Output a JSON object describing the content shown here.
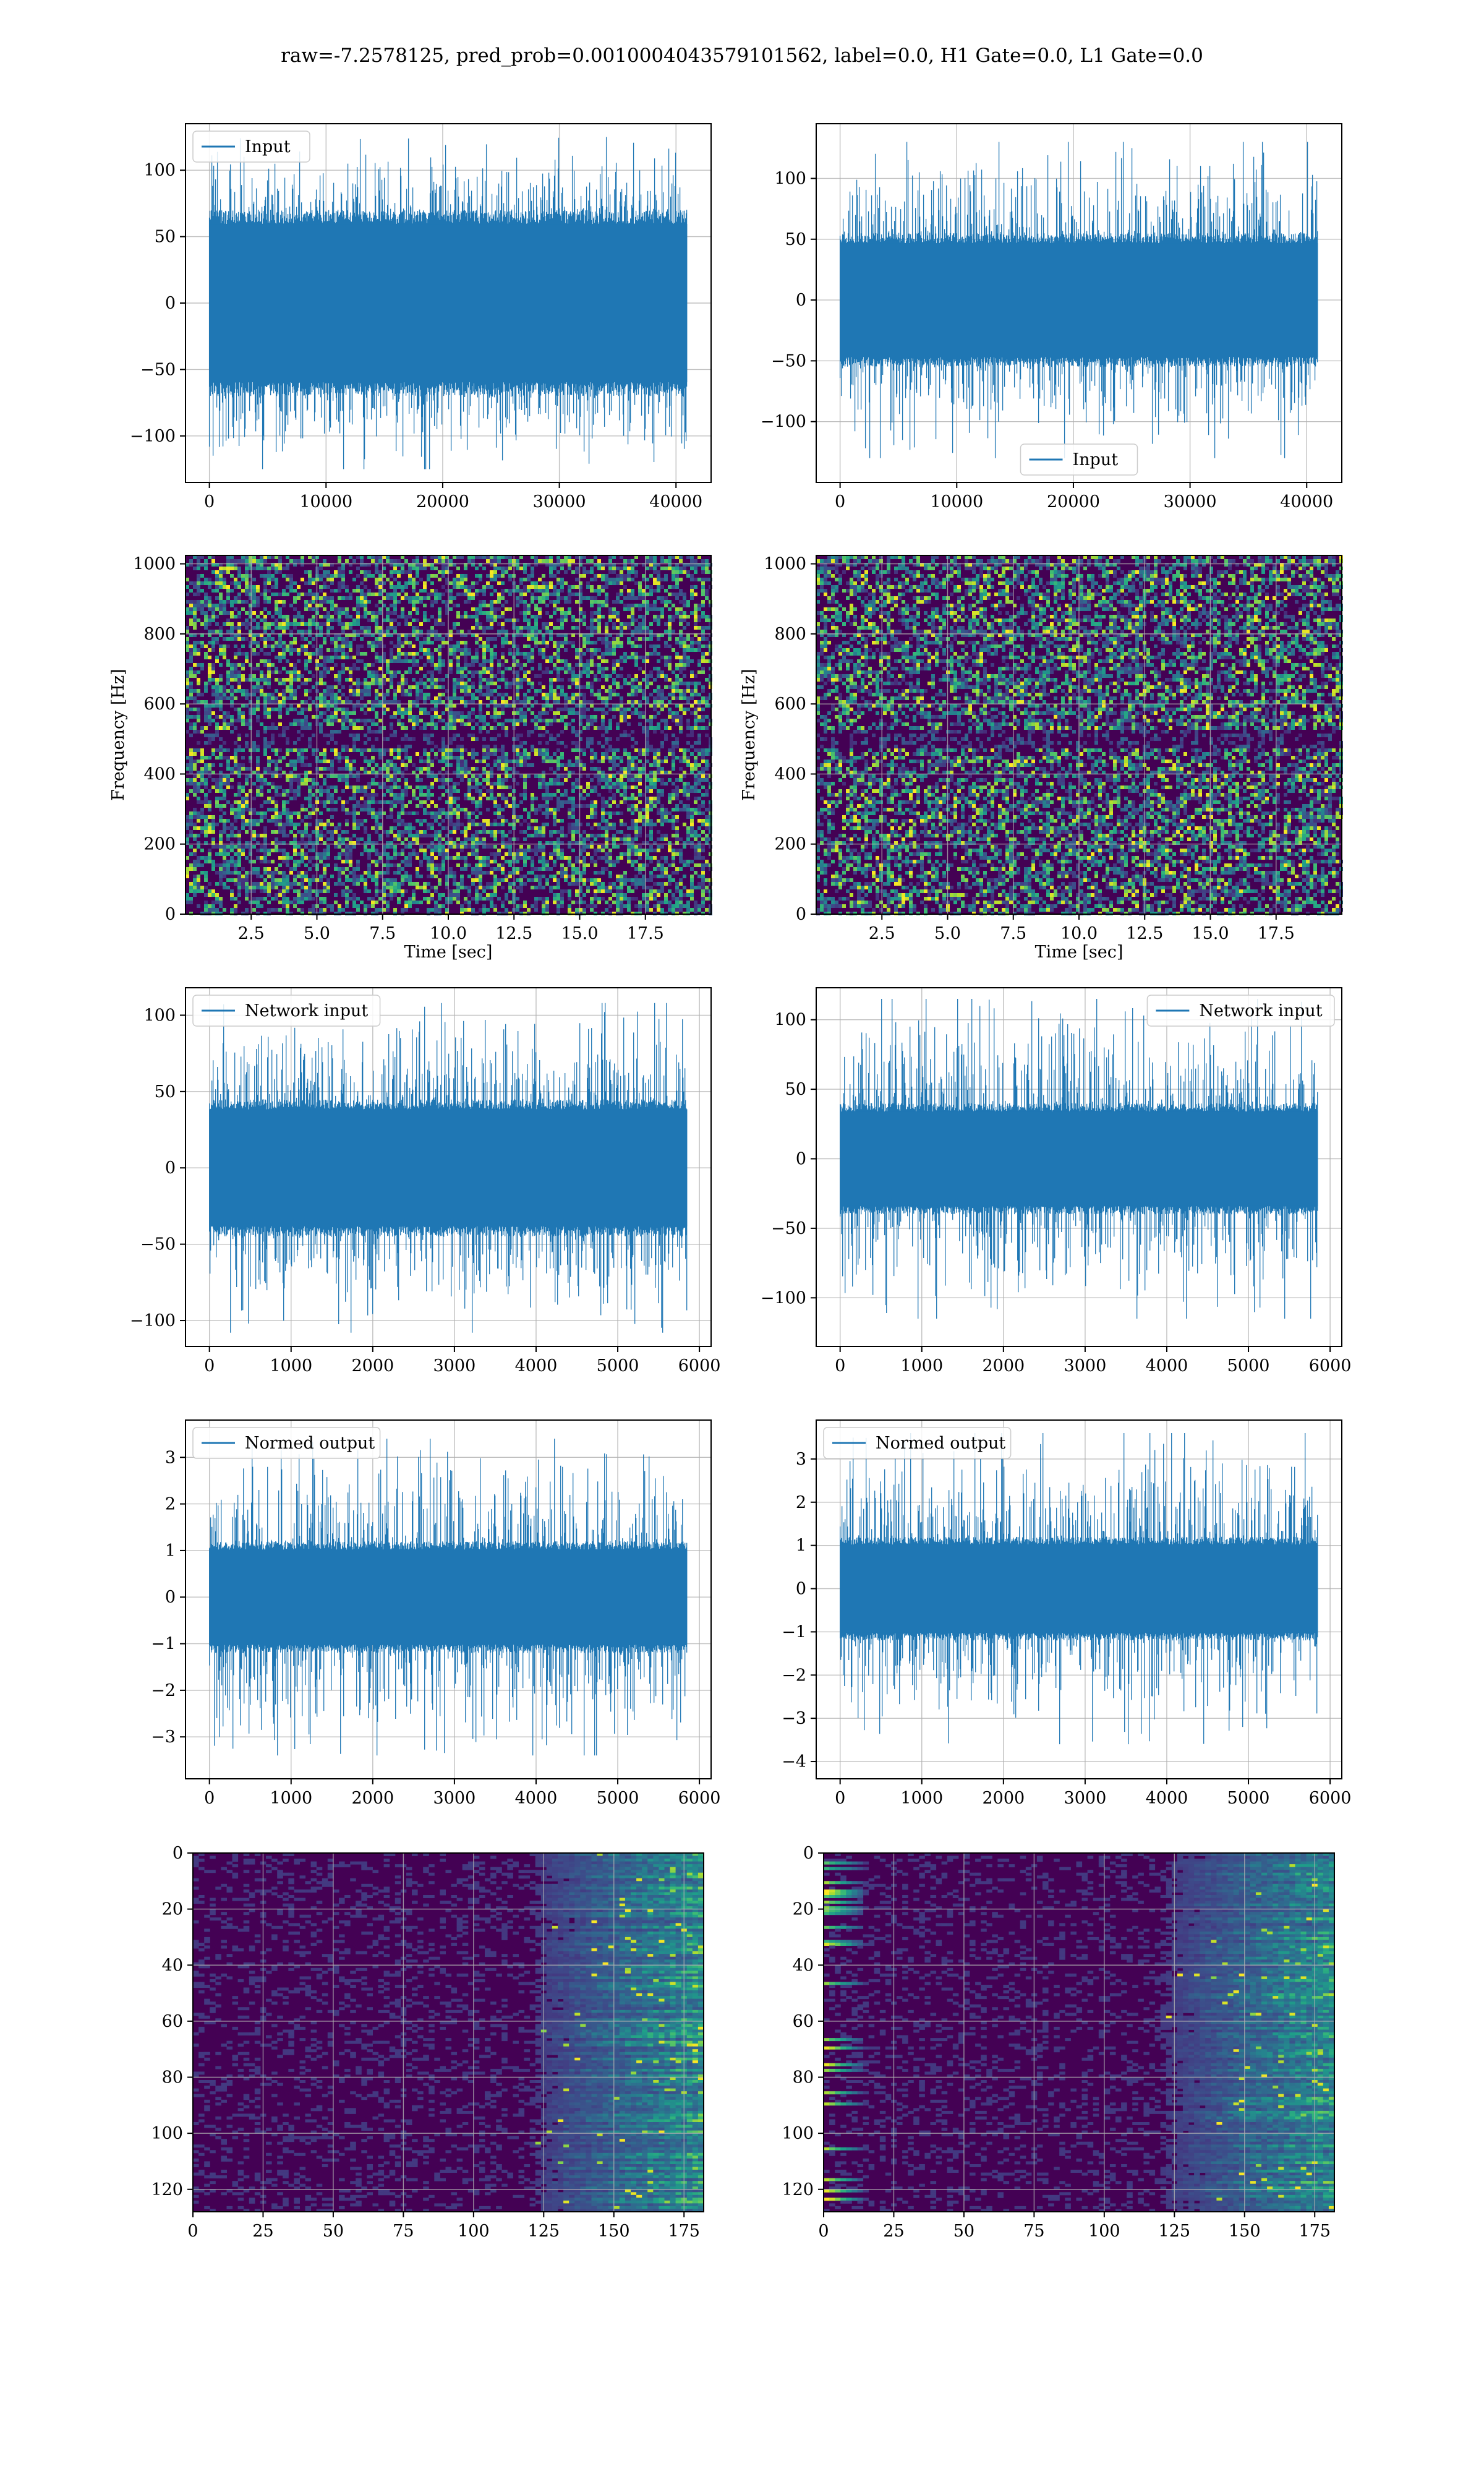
{
  "title": "raw=-7.2578125, pred_prob=0.0010004043579101562, label=0.0, H1 Gate=0.0, L1 Gate=0.0",
  "colors": {
    "line": "#1f77b4",
    "grid": "#b0b0b0",
    "viridis_low": "#440154",
    "viridis_mid": "#21918c",
    "viridis_high": "#fde725"
  },
  "chart_data": [
    {
      "id": "r1c1",
      "type": "line",
      "legend": "Input",
      "legend_loc": "upper left",
      "x": [
        0,
        40960
      ],
      "xticks": [
        0,
        10000,
        20000,
        30000,
        40000
      ],
      "yticks": [
        -100,
        -50,
        0,
        50,
        100
      ],
      "xlim": [
        -2048,
        43008
      ],
      "ylim": [
        -135,
        135
      ],
      "band": 70,
      "peak": 125,
      "grid": true
    },
    {
      "id": "r1c2",
      "type": "line",
      "legend": "Input",
      "legend_loc": "lower center",
      "x": [
        0,
        40960
      ],
      "xticks": [
        0,
        10000,
        20000,
        30000,
        40000
      ],
      "yticks": [
        -100,
        -50,
        0,
        50,
        100
      ],
      "xlim": [
        -2048,
        43008
      ],
      "ylim": [
        -150,
        145
      ],
      "band": 55,
      "peak": 130,
      "grid": true
    },
    {
      "id": "r2c1",
      "type": "heatmap",
      "xlabel": "Time [sec]",
      "ylabel": "Frequency [Hz]",
      "xticks": [
        2.5,
        5.0,
        7.5,
        10.0,
        12.5,
        15.0,
        17.5
      ],
      "yticks": [
        0,
        200,
        400,
        600,
        800,
        1000
      ],
      "xlim": [
        0,
        20
      ],
      "ylim": [
        0,
        1024
      ],
      "grid": true
    },
    {
      "id": "r2c2",
      "type": "heatmap",
      "xlabel": "Time [sec]",
      "ylabel": "Frequency [Hz]",
      "xticks": [
        2.5,
        5.0,
        7.5,
        10.0,
        12.5,
        15.0,
        17.5
      ],
      "yticks": [
        0,
        200,
        400,
        600,
        800,
        1000
      ],
      "xlim": [
        0,
        20
      ],
      "ylim": [
        0,
        1024
      ],
      "grid": true
    },
    {
      "id": "r3c1",
      "type": "line",
      "legend": "Network input",
      "legend_loc": "upper left",
      "x": [
        0,
        5850
      ],
      "xticks": [
        0,
        1000,
        2000,
        3000,
        4000,
        5000,
        6000
      ],
      "yticks": [
        -100,
        -50,
        0,
        50,
        100
      ],
      "xlim": [
        -293,
        6143
      ],
      "ylim": [
        -117,
        118
      ],
      "band": 45,
      "peak": 108,
      "grid": true
    },
    {
      "id": "r3c2",
      "type": "line",
      "legend": "Network input",
      "legend_loc": "upper right",
      "x": [
        0,
        5850
      ],
      "xticks": [
        0,
        1000,
        2000,
        3000,
        4000,
        5000,
        6000
      ],
      "yticks": [
        -100,
        -50,
        0,
        50,
        100
      ],
      "xlim": [
        -293,
        6143
      ],
      "ylim": [
        -135,
        123
      ],
      "band": 40,
      "peak": 115,
      "grid": true
    },
    {
      "id": "r4c1",
      "type": "line",
      "legend": "Normed output",
      "legend_loc": "upper left",
      "x": [
        0,
        5850
      ],
      "xticks": [
        0,
        1000,
        2000,
        3000,
        4000,
        5000,
        6000
      ],
      "yticks": [
        -3,
        -2,
        -1,
        0,
        1,
        2,
        3
      ],
      "xlim": [
        -293,
        6143
      ],
      "ylim": [
        -3.9,
        3.8
      ],
      "band": 1.2,
      "peak": 3.4,
      "grid": true
    },
    {
      "id": "r4c2",
      "type": "line",
      "legend": "Normed output",
      "legend_loc": "upper left",
      "x": [
        0,
        5850
      ],
      "xticks": [
        0,
        1000,
        2000,
        3000,
        4000,
        5000,
        6000
      ],
      "yticks": [
        -4,
        -3,
        -2,
        -1,
        0,
        1,
        2,
        3
      ],
      "xlim": [
        -293,
        6143
      ],
      "ylim": [
        -4.4,
        3.9
      ],
      "band": 1.2,
      "peak": 3.6,
      "grid": true
    },
    {
      "id": "r5c1",
      "type": "heatmap",
      "rows": 128,
      "cols": 182,
      "xticks": [
        0,
        25,
        50,
        75,
        100,
        125,
        150,
        175
      ],
      "yticks": [
        0,
        20,
        40,
        60,
        80,
        100,
        120
      ],
      "xlim": [
        0,
        182
      ],
      "ylim": [
        128,
        0
      ],
      "grid": true
    },
    {
      "id": "r5c2",
      "type": "heatmap",
      "rows": 128,
      "cols": 182,
      "xticks": [
        0,
        25,
        50,
        75,
        100,
        125,
        150,
        175
      ],
      "yticks": [
        0,
        20,
        40,
        60,
        80,
        100,
        120
      ],
      "xlim": [
        0,
        182
      ],
      "ylim": [
        128,
        0
      ],
      "grid": true
    }
  ]
}
